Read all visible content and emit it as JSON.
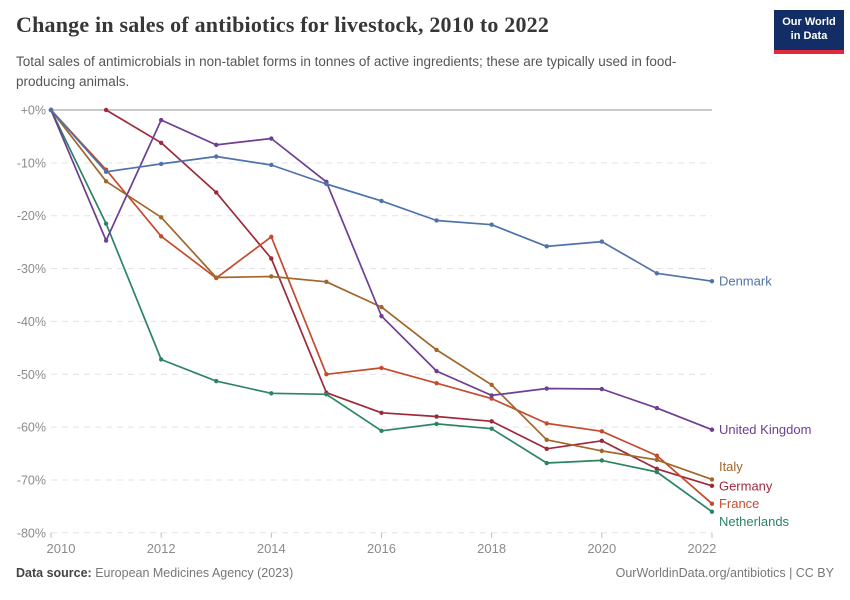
{
  "header": {
    "title": "Change in sales of antibiotics for livestock, 2010 to 2022",
    "subtitle": "Total sales of antimicrobials in non-tablet forms in tonnes of active ingredients; these are typically used in food-producing animals.",
    "logo": {
      "line1": "Our World",
      "line2": "in Data"
    }
  },
  "footer": {
    "source_label": "Data source:",
    "source_value": " European Medicines Agency (2023)",
    "credit": "OurWorldinData.org/antibiotics | CC BY"
  },
  "chart_data": {
    "type": "line",
    "title": "Change in sales of antibiotics for livestock, 2010 to 2022",
    "xlabel": "",
    "ylabel": "",
    "xlim": [
      2010,
      2022
    ],
    "ylim": [
      -80,
      0
    ],
    "grid": "horizontal-dashed",
    "legend_position": "right-end-labels",
    "x_ticks": [
      2010,
      2012,
      2014,
      2016,
      2018,
      2020,
      2022
    ],
    "x_tick_labels": [
      "2010",
      "2012",
      "2014",
      "2016",
      "2018",
      "2020",
      "2022"
    ],
    "y_ticks": [
      0,
      -10,
      -20,
      -30,
      -40,
      -50,
      -60,
      -70,
      -80
    ],
    "y_tick_labels": [
      "+0%",
      "-10%",
      "-20%",
      "-30%",
      "-40%",
      "-50%",
      "-60%",
      "-70%",
      "-80%"
    ],
    "zero_line_color": "#c9c9c9",
    "gridline_color": "#e3e3e3",
    "axis_text_color": "#8b8b8b",
    "series": [
      {
        "name": "Germany",
        "color": "#9d2a3a",
        "label_dy": 0,
        "points": [
          [
            2011,
            0
          ],
          [
            2012,
            -6.2
          ],
          [
            2013,
            -15.6
          ],
          [
            2014,
            -28.1
          ],
          [
            2015,
            -53.5
          ],
          [
            2016,
            -57.3
          ],
          [
            2017,
            -58
          ],
          [
            2018,
            -58.9
          ],
          [
            2019,
            -64.1
          ],
          [
            2020,
            -62.6
          ],
          [
            2021,
            -67.9
          ],
          [
            2022,
            -71.1
          ]
        ]
      },
      {
        "name": "France",
        "color": "#c64a2c",
        "label_dy": 0,
        "points": [
          [
            2010,
            0
          ],
          [
            2011,
            -11.3
          ],
          [
            2012,
            -23.9
          ],
          [
            2013,
            -31.8
          ],
          [
            2014,
            -24
          ],
          [
            2015,
            -50
          ],
          [
            2016,
            -48.8
          ],
          [
            2017,
            -51.7
          ],
          [
            2018,
            -54.6
          ],
          [
            2019,
            -59.3
          ],
          [
            2020,
            -60.8
          ],
          [
            2021,
            -65.4
          ],
          [
            2022,
            -74.5
          ]
        ]
      },
      {
        "name": "Italy",
        "color": "#a2662b",
        "label_dy": -13,
        "points": [
          [
            2010,
            0
          ],
          [
            2011,
            -13.5
          ],
          [
            2012,
            -20.3
          ],
          [
            2013,
            -31.7
          ],
          [
            2014,
            -31.5
          ],
          [
            2015,
            -32.5
          ],
          [
            2016,
            -37.3
          ],
          [
            2017,
            -45.4
          ],
          [
            2018,
            -52
          ],
          [
            2019,
            -62.4
          ],
          [
            2020,
            -64.5
          ],
          [
            2021,
            -66.2
          ],
          [
            2022,
            -69.9
          ]
        ]
      },
      {
        "name": "Netherlands",
        "color": "#2c8465",
        "label_dy": 10,
        "points": [
          [
            2010,
            0
          ],
          [
            2011,
            -21.5
          ],
          [
            2012,
            -47.2
          ],
          [
            2013,
            -51.3
          ],
          [
            2014,
            -53.6
          ],
          [
            2015,
            -53.8
          ],
          [
            2016,
            -60.7
          ],
          [
            2017,
            -59.4
          ],
          [
            2018,
            -60.3
          ],
          [
            2019,
            -66.8
          ],
          [
            2020,
            -66.3
          ],
          [
            2021,
            -68.5
          ],
          [
            2022,
            -76
          ]
        ]
      },
      {
        "name": "United Kingdom",
        "color": "#6d3e91",
        "label_dy": 0,
        "points": [
          [
            2010,
            0
          ],
          [
            2011,
            -24.7
          ],
          [
            2012,
            -1.9
          ],
          [
            2013,
            -6.6
          ],
          [
            2014,
            -5.4
          ],
          [
            2015,
            -13.6
          ],
          [
            2016,
            -39
          ],
          [
            2017,
            -49.4
          ],
          [
            2018,
            -54
          ],
          [
            2019,
            -52.7
          ],
          [
            2020,
            -52.8
          ],
          [
            2021,
            -56.4
          ],
          [
            2022,
            -60.5
          ]
        ]
      },
      {
        "name": "Denmark",
        "color": "#4f73a9",
        "label_dy": 0,
        "points": [
          [
            2010,
            0
          ],
          [
            2011,
            -11.7
          ],
          [
            2012,
            -10.2
          ],
          [
            2013,
            -8.8
          ],
          [
            2014,
            -10.4
          ],
          [
            2015,
            -14
          ],
          [
            2016,
            -17.2
          ],
          [
            2017,
            -20.9
          ],
          [
            2018,
            -21.7
          ],
          [
            2019,
            -25.8
          ],
          [
            2020,
            -24.9
          ],
          [
            2021,
            -30.9
          ],
          [
            2022,
            -32.4
          ]
        ]
      }
    ]
  }
}
